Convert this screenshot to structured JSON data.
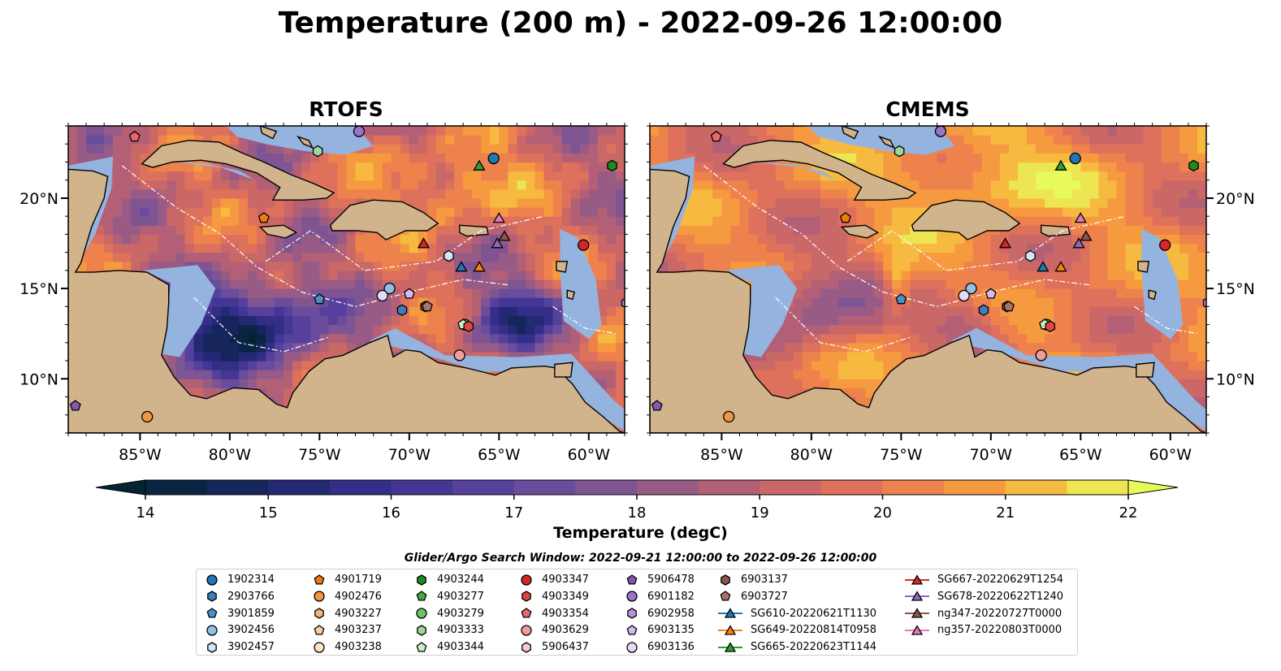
{
  "title": "Temperature (200 m) - 2022-09-26 12:00:00",
  "panels": [
    {
      "title": "RTOFS",
      "model": "rtofs"
    },
    {
      "title": "CMEMS",
      "model": "cmems"
    }
  ],
  "map": {
    "lon_range": [
      -89,
      -58
    ],
    "lat_range": [
      7,
      24
    ],
    "lon_ticks": [
      "85°W",
      "80°W",
      "75°W",
      "70°W",
      "65°W",
      "60°W"
    ],
    "lon_tick_values": [
      -85,
      -80,
      -75,
      -70,
      -65,
      -60
    ],
    "lat_ticks": [
      "20°N",
      "15°N",
      "10°N"
    ],
    "lat_tick_values": [
      20,
      15,
      10
    ],
    "colors": {
      "land": "#d2b48c",
      "shelf": "#95b3df",
      "ocean_deep": "#1c2a48"
    }
  },
  "colorbar": {
    "label": "Temperature (degC)",
    "min": 14,
    "max": 22,
    "step": 0.5,
    "ticks": [
      "14",
      "15",
      "16",
      "17",
      "18",
      "19",
      "20",
      "21",
      "22"
    ],
    "extend": "both",
    "colormap": "thermal"
  },
  "search_window": "Glider/Argo Search Window: 2022-09-21 12:00:00 to 2022-09-26 12:00:00",
  "legend": {
    "columns": [
      [
        {
          "label": "1902314",
          "marker": "circle",
          "color": "#1f77b4"
        },
        {
          "label": "2903766",
          "marker": "hexagon",
          "color": "#3d7ebd"
        },
        {
          "label": "3901859",
          "marker": "pentagon",
          "color": "#4a8fc7"
        },
        {
          "label": "3902456",
          "marker": "circle",
          "color": "#8ec1e6"
        },
        {
          "label": "3902457",
          "marker": "hexagon",
          "color": "#d2e6f6"
        }
      ],
      [
        {
          "label": "4901719",
          "marker": "pentagon",
          "color": "#f07a10"
        },
        {
          "label": "4902476",
          "marker": "circle",
          "color": "#f39642"
        },
        {
          "label": "4903227",
          "marker": "hexagon",
          "color": "#f6b374"
        },
        {
          "label": "4903237",
          "marker": "pentagon",
          "color": "#f9cda4"
        },
        {
          "label": "4903238",
          "marker": "circle",
          "color": "#fbe3c8"
        }
      ],
      [
        {
          "label": "4903244",
          "marker": "hexagon",
          "color": "#1f8a1f"
        },
        {
          "label": "4903277",
          "marker": "pentagon",
          "color": "#43a943"
        },
        {
          "label": "4903279",
          "marker": "circle",
          "color": "#6cc46c"
        },
        {
          "label": "4903333",
          "marker": "hexagon",
          "color": "#9ad99a"
        },
        {
          "label": "4903344",
          "marker": "pentagon",
          "color": "#c9efc4"
        }
      ],
      [
        {
          "label": "4903347",
          "marker": "circle",
          "color": "#d62728"
        },
        {
          "label": "4903349",
          "marker": "hexagon",
          "color": "#e04545"
        },
        {
          "label": "4903354",
          "marker": "pentagon",
          "color": "#e86868"
        },
        {
          "label": "4903629",
          "marker": "circle",
          "color": "#f29b9b"
        },
        {
          "label": "5906437",
          "marker": "hexagon",
          "color": "#f8cccc"
        }
      ],
      [
        {
          "label": "5906478",
          "marker": "pentagon",
          "color": "#8456b4"
        },
        {
          "label": "6901182",
          "marker": "circle",
          "color": "#9d73c8"
        },
        {
          "label": "6902958",
          "marker": "hexagon",
          "color": "#b894dc"
        },
        {
          "label": "6903135",
          "marker": "pentagon",
          "color": "#d3b9ee"
        },
        {
          "label": "6903136",
          "marker": "circle",
          "color": "#e8d8f8"
        }
      ],
      [
        {
          "label": "6903137",
          "marker": "hexagon",
          "color": "#8c564b"
        },
        {
          "label": "6903727",
          "marker": "pentagon",
          "color": "#a8736a"
        },
        {
          "label": "SG610-20220621T1130",
          "marker": "triangle",
          "color": "#1f77b4",
          "line": true
        },
        {
          "label": "SG649-20220814T0958",
          "marker": "triangle",
          "color": "#ff7f0e",
          "line": true
        },
        {
          "label": "SG665-20220623T1144",
          "marker": "triangle",
          "color": "#2ca02c",
          "line": true
        }
      ],
      [
        {
          "label": "SG667-20220629T1254",
          "marker": "triangle",
          "color": "#d62728",
          "line": true
        },
        {
          "label": "SG678-20220622T1240",
          "marker": "triangle",
          "color": "#9467bd",
          "line": true
        },
        {
          "label": "ng347-20220727T0000",
          "marker": "triangle",
          "color": "#8c564b",
          "line": true
        },
        {
          "label": "ng357-20220803T0000",
          "marker": "triangle",
          "color": "#e377c2",
          "line": true
        }
      ]
    ]
  },
  "platforms": [
    {
      "id": "1902314",
      "lon": -65.3,
      "lat": 22.2
    },
    {
      "id": "2903766",
      "lon": -70.4,
      "lat": 13.8
    },
    {
      "id": "3901859",
      "lon": -75.0,
      "lat": 14.4
    },
    {
      "id": "3902456",
      "lon": -71.1,
      "lat": 15.0
    },
    {
      "id": "3902457",
      "lon": -67.8,
      "lat": 16.8
    },
    {
      "id": "4901719",
      "lon": -78.1,
      "lat": 18.9
    },
    {
      "id": "4902476",
      "lon": -84.6,
      "lat": 7.9
    },
    {
      "id": "4903244",
      "lon": -58.7,
      "lat": 21.8
    },
    {
      "id": "4903279",
      "lon": -66.9,
      "lat": 13.0
    },
    {
      "id": "4903333",
      "lon": -75.1,
      "lat": 22.6
    },
    {
      "id": "4903344",
      "lon": -67.0,
      "lat": 13.0
    },
    {
      "id": "4903347",
      "lon": -60.3,
      "lat": 17.4
    },
    {
      "id": "4903349",
      "lon": -66.7,
      "lat": 12.9
    },
    {
      "id": "4903354",
      "lon": -85.3,
      "lat": 23.4
    },
    {
      "id": "4903629",
      "lon": -67.2,
      "lat": 11.3
    },
    {
      "id": "5906478",
      "lon": -88.6,
      "lat": 8.5
    },
    {
      "id": "6901182",
      "lon": -72.8,
      "lat": 23.7
    },
    {
      "id": "6902958",
      "lon": -57.9,
      "lat": 14.2
    },
    {
      "id": "6903135",
      "lon": -70.0,
      "lat": 14.7
    },
    {
      "id": "6903136",
      "lon": -71.5,
      "lat": 14.6
    },
    {
      "id": "6903137",
      "lon": -69.1,
      "lat": 14.0
    },
    {
      "id": "6903727",
      "lon": -69.0,
      "lat": 14.0
    },
    {
      "id": "SG610-20220621T1130",
      "lon": -67.1,
      "lat": 16.2
    },
    {
      "id": "SG649-20220814T0958",
      "lon": -66.1,
      "lat": 16.2
    },
    {
      "id": "SG665-20220623T1144",
      "lon": -66.1,
      "lat": 21.8
    },
    {
      "id": "SG667-20220629T1254",
      "lon": -69.2,
      "lat": 17.5
    },
    {
      "id": "SG678-20220622T1240",
      "lon": -65.1,
      "lat": 17.5
    },
    {
      "id": "ng347-20220727T0000",
      "lon": -64.7,
      "lat": 17.9
    },
    {
      "id": "ng357-20220803T0000",
      "lon": -65.0,
      "lat": 18.9
    }
  ]
}
